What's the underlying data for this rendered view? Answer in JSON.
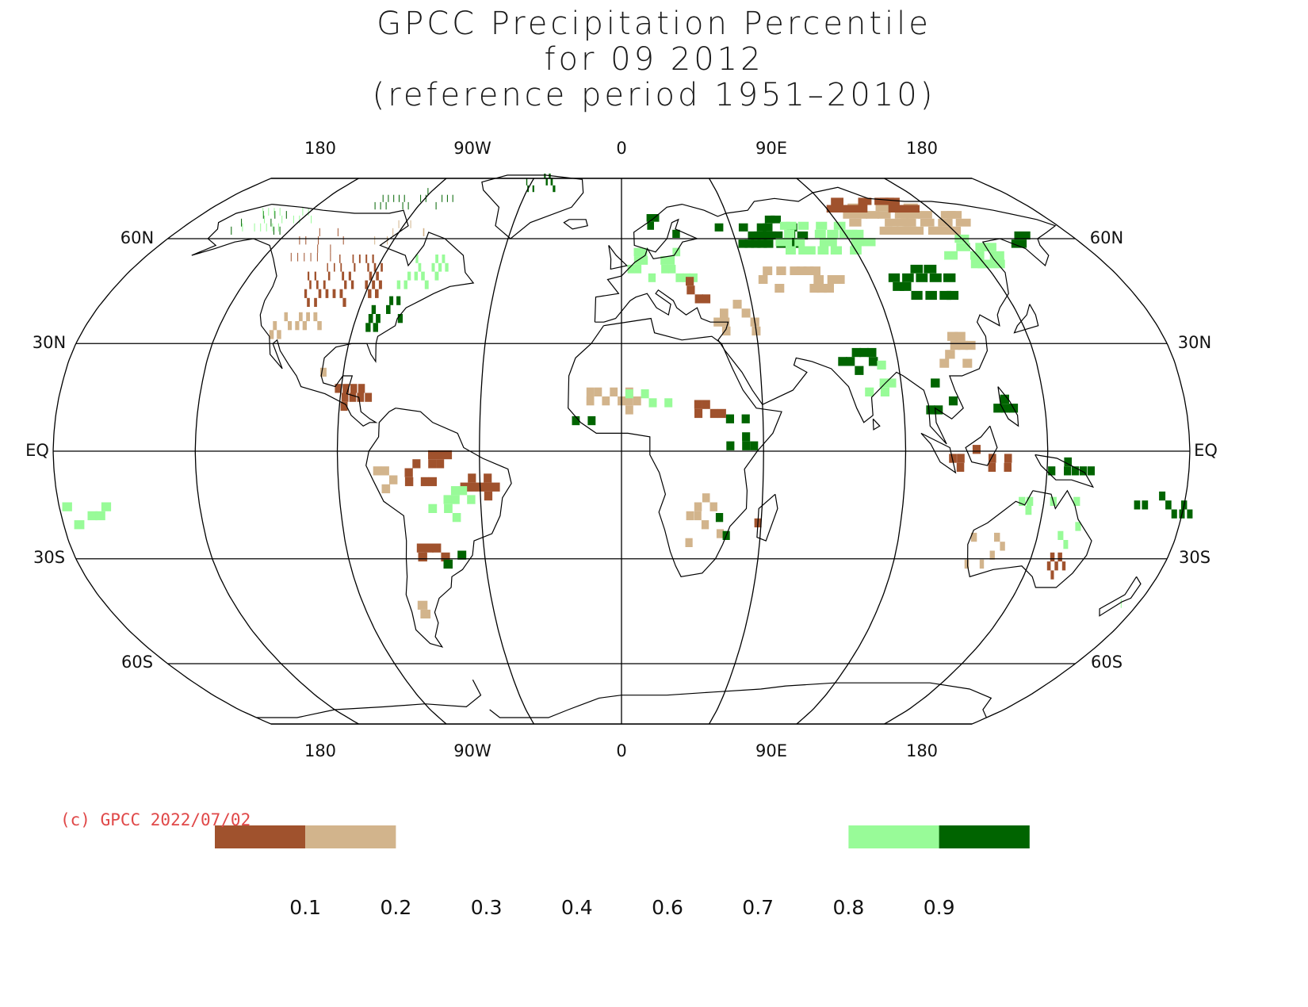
{
  "title": {
    "line1": "GPCC Precipitation Percentile",
    "line2": "for 09 2012",
    "line3": "(reference period 1951–2010)"
  },
  "copyright": "(c) GPCC 2022/07/02",
  "longitude_labels": [
    "180",
    "90W",
    "0",
    "90E",
    "180"
  ],
  "latitude_labels": [
    "60N",
    "30N",
    "EQ",
    "30S",
    "60S"
  ],
  "colorbar": {
    "ticks": [
      "0.1",
      "0.2",
      "0.3",
      "0.4",
      "0.6",
      "0.7",
      "0.8",
      "0.9"
    ],
    "bins": [
      {
        "range": "<0.1",
        "color": "#a0522d"
      },
      {
        "range": "0.1-0.2",
        "color": "#d2b48c"
      },
      {
        "range": "0.2-0.8",
        "color": "#ffffff"
      },
      {
        "range": "0.8-0.9",
        "color": "#98fb98"
      },
      {
        "range": ">0.9",
        "color": "#006400"
      }
    ]
  },
  "map": {
    "projection": "robinson",
    "central_longitude": 0,
    "colors": {
      "very_dry": "#a0522d",
      "dry": "#d2b48c",
      "wet": "#98fb98",
      "very_wet": "#006400"
    },
    "regions": [
      {
        "name": "central-north-america",
        "lat": 47,
        "lon": -100,
        "dlat": 8,
        "dlon": 16,
        "class": "very_dry",
        "density": 0.65
      },
      {
        "name": "western-canada",
        "lat": 58,
        "lon": -118,
        "dlat": 6,
        "dlon": 12,
        "class": "very_dry",
        "density": 0.5
      },
      {
        "name": "us-southwest",
        "lat": 35,
        "lon": -110,
        "dlat": 5,
        "dlon": 9,
        "class": "dry",
        "density": 0.5
      },
      {
        "name": "alaska",
        "lat": 64,
        "lon": -150,
        "dlat": 4,
        "dlon": 12,
        "class": "very_wet",
        "density": 0.5
      },
      {
        "name": "alaska-wet",
        "lat": 66,
        "lon": -145,
        "dlat": 5,
        "dlon": 14,
        "class": "wet",
        "density": 0.4
      },
      {
        "name": "eastern-us",
        "lat": 38,
        "lon": -82,
        "dlat": 6,
        "dlon": 8,
        "class": "very_wet",
        "density": 0.35
      },
      {
        "name": "eastern-canada",
        "lat": 50,
        "lon": -72,
        "dlat": 6,
        "dlon": 10,
        "class": "wet",
        "density": 0.45
      },
      {
        "name": "hudson-bay",
        "lat": 62,
        "lon": -90,
        "dlat": 5,
        "dlon": 10,
        "class": "dry",
        "density": 0.35
      },
      {
        "name": "canadian-arctic",
        "lat": 72,
        "lon": -95,
        "dlat": 4,
        "dlon": 20,
        "class": "very_wet",
        "density": 0.35
      },
      {
        "name": "greenland",
        "lat": 78,
        "lon": -40,
        "dlat": 4,
        "dlon": 10,
        "class": "very_wet",
        "density": 0.55
      },
      {
        "name": "central-america",
        "lat": 15,
        "lon": -88,
        "dlat": 5,
        "dlon": 8,
        "class": "very_dry",
        "density": 0.5
      },
      {
        "name": "mexico",
        "lat": 22,
        "lon": -102,
        "dlat": 5,
        "dlon": 7,
        "class": "dry",
        "density": 0.35
      },
      {
        "name": "amazon",
        "lat": -5,
        "lon": -60,
        "dlat": 6,
        "dlon": 10,
        "class": "very_dry",
        "density": 0.35
      },
      {
        "name": "brazil-east",
        "lat": -10,
        "lon": -45,
        "dlat": 5,
        "dlon": 5,
        "class": "very_dry",
        "density": 0.45
      },
      {
        "name": "peru",
        "lat": -8,
        "lon": -76,
        "dlat": 5,
        "dlon": 4,
        "class": "dry",
        "density": 0.4
      },
      {
        "name": "brazil-wet",
        "lat": -15,
        "lon": -55,
        "dlat": 6,
        "dlon": 8,
        "class": "wet",
        "density": 0.25
      },
      {
        "name": "argentina",
        "lat": -27,
        "lon": -62,
        "dlat": 5,
        "dlon": 6,
        "class": "very_dry",
        "density": 0.45
      },
      {
        "name": "southern-brazil",
        "lat": -30,
        "lon": -55,
        "dlat": 4,
        "dlon": 5,
        "class": "very_wet",
        "density": 0.4
      },
      {
        "name": "patagonia",
        "lat": -42,
        "lon": -68,
        "dlat": 6,
        "dlon": 4,
        "class": "dry",
        "density": 0.4
      },
      {
        "name": "west-africa",
        "lat": 14,
        "lon": -5,
        "dlat": 5,
        "dlon": 10,
        "class": "dry",
        "density": 0.35
      },
      {
        "name": "west-africa-coast",
        "lat": 10,
        "lon": -12,
        "dlat": 4,
        "dlon": 5,
        "class": "very_wet",
        "density": 0.35
      },
      {
        "name": "sahel",
        "lat": 15,
        "lon": 10,
        "dlat": 4,
        "dlon": 10,
        "class": "wet",
        "density": 0.35
      },
      {
        "name": "east-africa",
        "lat": 5,
        "lon": 38,
        "dlat": 6,
        "dlon": 6,
        "class": "very_wet",
        "density": 0.35
      },
      {
        "name": "sudan",
        "lat": 12,
        "lon": 28,
        "dlat": 4,
        "dlon": 6,
        "class": "very_dry",
        "density": 0.35
      },
      {
        "name": "southern-africa",
        "lat": -20,
        "lon": 25,
        "dlat": 8,
        "dlon": 8,
        "class": "dry",
        "density": 0.3
      },
      {
        "name": "mozambique",
        "lat": -22,
        "lon": 32,
        "dlat": 4,
        "dlon": 3,
        "class": "very_wet",
        "density": 0.5
      },
      {
        "name": "madagascar",
        "lat": -20,
        "lon": 46,
        "dlat": 5,
        "dlon": 2,
        "class": "very_dry",
        "density": 0.4
      },
      {
        "name": "europe",
        "lat": 52,
        "lon": 15,
        "dlat": 6,
        "dlon": 14,
        "class": "wet",
        "density": 0.35
      },
      {
        "name": "scandinavia",
        "lat": 63,
        "lon": 15,
        "dlat": 4,
        "dlon": 8,
        "class": "very_wet",
        "density": 0.4
      },
      {
        "name": "southeast-europe",
        "lat": 45,
        "lon": 25,
        "dlat": 5,
        "dlon": 8,
        "class": "very_dry",
        "density": 0.4
      },
      {
        "name": "turkey-mideast",
        "lat": 36,
        "lon": 40,
        "dlat": 5,
        "dlon": 10,
        "class": "dry",
        "density": 0.35
      },
      {
        "name": "russia-west",
        "lat": 62,
        "lon": 55,
        "dlat": 6,
        "dlon": 20,
        "class": "very_wet",
        "density": 0.45
      },
      {
        "name": "russia-wet",
        "lat": 60,
        "lon": 80,
        "dlat": 6,
        "dlon": 20,
        "class": "wet",
        "density": 0.35
      },
      {
        "name": "kazakhstan",
        "lat": 48,
        "lon": 65,
        "dlat": 5,
        "dlon": 14,
        "class": "dry",
        "density": 0.35
      },
      {
        "name": "siberia-east",
        "lat": 66,
        "lon": 120,
        "dlat": 6,
        "dlon": 25,
        "class": "dry",
        "density": 0.4
      },
      {
        "name": "siberia-north",
        "lat": 70,
        "lon": 110,
        "dlat": 3,
        "dlon": 20,
        "class": "very_dry",
        "density": 0.3
      },
      {
        "name": "mongolia-china-n",
        "lat": 47,
        "lon": 110,
        "dlat": 6,
        "dlon": 14,
        "class": "very_wet",
        "density": 0.45
      },
      {
        "name": "russia-far-east",
        "lat": 55,
        "lon": 135,
        "dlat": 5,
        "dlon": 10,
        "class": "wet",
        "density": 0.4
      },
      {
        "name": "kamchatka",
        "lat": 60,
        "lon": 158,
        "dlat": 4,
        "dlon": 5,
        "class": "very_wet",
        "density": 0.5
      },
      {
        "name": "india",
        "lat": 25,
        "lon": 78,
        "dlat": 5,
        "dlon": 6,
        "class": "very_wet",
        "density": 0.6
      },
      {
        "name": "india-wet",
        "lat": 20,
        "lon": 80,
        "dlat": 6,
        "dlon": 8,
        "class": "wet",
        "density": 0.35
      },
      {
        "name": "china-south",
        "lat": 28,
        "lon": 110,
        "dlat": 6,
        "dlon": 10,
        "class": "dry",
        "density": 0.35
      },
      {
        "name": "southeast-asia",
        "lat": 15,
        "lon": 102,
        "dlat": 6,
        "dlon": 6,
        "class": "very_wet",
        "density": 0.4
      },
      {
        "name": "philippines",
        "lat": 12,
        "lon": 123,
        "dlat": 5,
        "dlon": 3,
        "class": "very_wet",
        "density": 0.4
      },
      {
        "name": "indonesia",
        "lat": -3,
        "lon": 112,
        "dlat": 4,
        "dlon": 12,
        "class": "very_dry",
        "density": 0.35
      },
      {
        "name": "new-guinea",
        "lat": -5,
        "lon": 142,
        "dlat": 3,
        "dlon": 8,
        "class": "very_wet",
        "density": 0.45
      },
      {
        "name": "north-australia",
        "lat": -15,
        "lon": 135,
        "dlat": 4,
        "dlon": 12,
        "class": "wet",
        "density": 0.35
      },
      {
        "name": "australia-west",
        "lat": -28,
        "lon": 120,
        "dlat": 6,
        "dlon": 8,
        "class": "dry",
        "density": 0.35
      },
      {
        "name": "australia-se",
        "lat": -32,
        "lon": 143,
        "dlat": 5,
        "dlon": 6,
        "class": "very_dry",
        "density": 0.5
      },
      {
        "name": "queensland",
        "lat": -22,
        "lon": 145,
        "dlat": 4,
        "dlon": 5,
        "class": "wet",
        "density": 0.35
      },
      {
        "name": "pacific-islands",
        "lat": -15,
        "lon": 175,
        "dlat": 5,
        "dlon": 10,
        "class": "very_wet",
        "density": 0.2
      },
      {
        "name": "pacific-islands-east",
        "lat": -18,
        "lon": -170,
        "dlat": 5,
        "dlon": 10,
        "class": "wet",
        "density": 0.15
      },
      {
        "name": "new-zealand",
        "lat": -42,
        "lon": 172,
        "dlat": 3,
        "dlon": 3,
        "class": "wet",
        "density": 0.4
      }
    ]
  }
}
